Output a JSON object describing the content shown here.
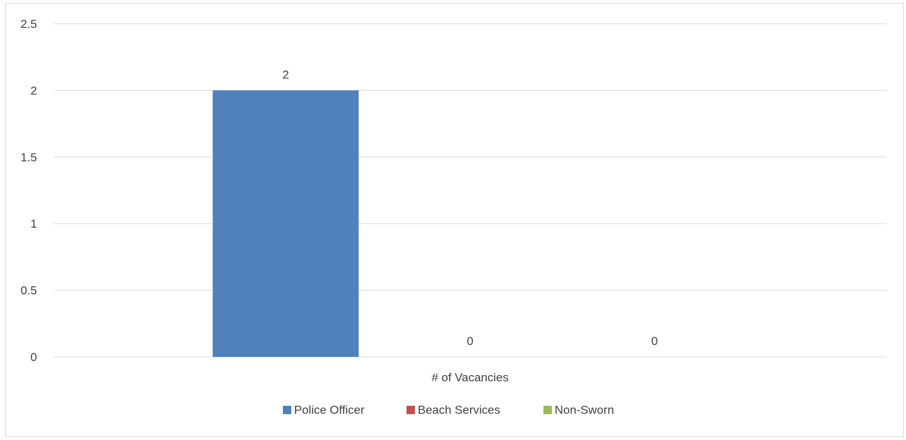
{
  "chart_data": {
    "type": "bar",
    "categories": [
      "# of Vacancies"
    ],
    "series": [
      {
        "name": "Police Officer",
        "values": [
          2
        ],
        "color": "#4f81bd"
      },
      {
        "name": "Beach Services",
        "values": [
          0
        ],
        "color": "#c0504d"
      },
      {
        "name": "Non-Sworn",
        "values": [
          0
        ],
        "color": "#9bbb59"
      }
    ],
    "title": "",
    "xlabel": "",
    "ylabel": "",
    "ylim": [
      0,
      2.5
    ],
    "yticks": [
      0,
      0.5,
      1,
      1.5,
      2,
      2.5
    ],
    "ytick_labels": [
      "0",
      "0.5",
      "1",
      "1.5",
      "2",
      "2.5"
    ],
    "data_labels": [
      "2",
      "0",
      "0"
    ],
    "grid": true,
    "legend_position": "bottom"
  }
}
